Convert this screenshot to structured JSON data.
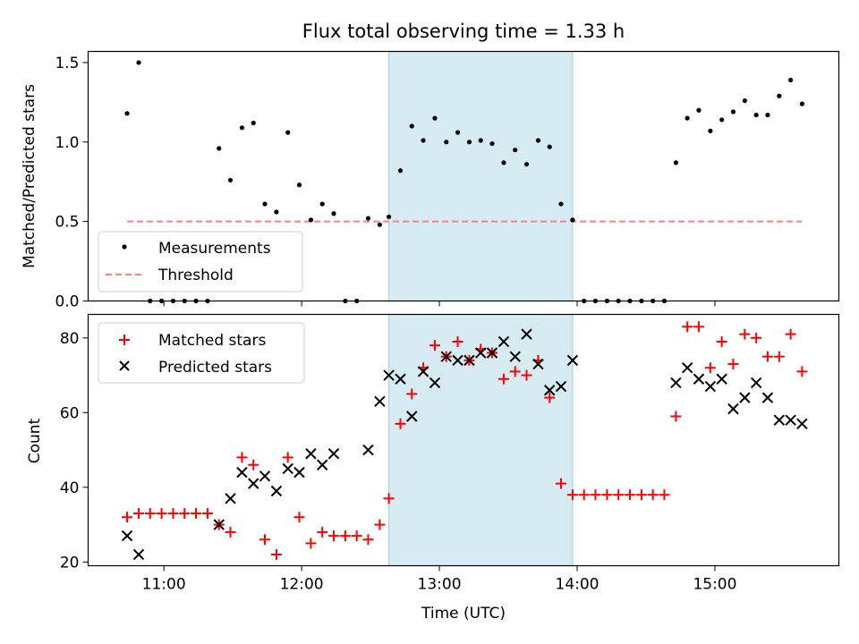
{
  "chart_data": [
    {
      "type": "scatter",
      "title": "Flux total observing time = 1.33 h",
      "xlabel": "",
      "ylabel": "Matched/Predicted stars",
      "xlim": [
        10.45,
        15.9
      ],
      "ylim": [
        0.0,
        1.57
      ],
      "yticks": [
        0.0,
        0.5,
        1.0,
        1.5
      ],
      "ytick_labels": [
        "0.0",
        "0.5",
        "1.0",
        "1.5"
      ],
      "shaded_span": {
        "x": [
          12.633,
          13.967
        ],
        "color": "#add8e6"
      },
      "legend": {
        "position": "lower-left",
        "entries": [
          "Measurements",
          "Threshold"
        ]
      },
      "series": [
        {
          "name": "Measurements",
          "marker": "dot",
          "color": "#000000",
          "points": [
            [
              10.733,
              1.18
            ],
            [
              10.817,
              1.5
            ],
            [
              10.9,
              0.0
            ],
            [
              10.983,
              0.0
            ],
            [
              11.067,
              0.0
            ],
            [
              11.15,
              0.0
            ],
            [
              11.233,
              0.0
            ],
            [
              11.317,
              0.0
            ],
            [
              11.4,
              0.96
            ],
            [
              11.483,
              0.76
            ],
            [
              11.567,
              1.09
            ],
            [
              11.65,
              1.12
            ],
            [
              11.733,
              0.61
            ],
            [
              11.817,
              0.56
            ],
            [
              11.9,
              1.06
            ],
            [
              11.983,
              0.73
            ],
            [
              12.067,
              0.51
            ],
            [
              12.15,
              0.61
            ],
            [
              12.233,
              0.55
            ],
            [
              12.317,
              0.0
            ],
            [
              12.4,
              0.0
            ],
            [
              12.483,
              0.52
            ],
            [
              12.567,
              0.48
            ],
            [
              12.633,
              0.53
            ],
            [
              12.717,
              0.82
            ],
            [
              12.8,
              1.1
            ],
            [
              12.883,
              1.01
            ],
            [
              12.967,
              1.15
            ],
            [
              13.05,
              1.0
            ],
            [
              13.133,
              1.06
            ],
            [
              13.217,
              1.0
            ],
            [
              13.3,
              1.01
            ],
            [
              13.383,
              0.99
            ],
            [
              13.467,
              0.87
            ],
            [
              13.55,
              0.95
            ],
            [
              13.633,
              0.86
            ],
            [
              13.717,
              1.01
            ],
            [
              13.8,
              0.97
            ],
            [
              13.883,
              0.61
            ],
            [
              13.967,
              0.51
            ],
            [
              14.05,
              0.0
            ],
            [
              14.133,
              0.0
            ],
            [
              14.217,
              0.0
            ],
            [
              14.3,
              0.0
            ],
            [
              14.383,
              0.0
            ],
            [
              14.467,
              0.0
            ],
            [
              14.55,
              0.0
            ],
            [
              14.633,
              0.0
            ],
            [
              14.717,
              0.87
            ],
            [
              14.8,
              1.15
            ],
            [
              14.883,
              1.2
            ],
            [
              14.967,
              1.07
            ],
            [
              15.05,
              1.14
            ],
            [
              15.133,
              1.19
            ],
            [
              15.217,
              1.26
            ],
            [
              15.3,
              1.17
            ],
            [
              15.383,
              1.17
            ],
            [
              15.467,
              1.29
            ],
            [
              15.55,
              1.39
            ],
            [
              15.633,
              1.24
            ]
          ]
        },
        {
          "name": "Threshold",
          "marker": "dashed-line",
          "color": "#ff7f7f",
          "points": [
            [
              10.733,
              0.5
            ],
            [
              15.633,
              0.5
            ]
          ]
        }
      ]
    },
    {
      "type": "scatter",
      "title": "",
      "xlabel": "Time (UTC)",
      "ylabel": "Count",
      "xlim": [
        10.45,
        15.9
      ],
      "ylim": [
        19.0,
        86.3
      ],
      "yticks": [
        20,
        40,
        60,
        80
      ],
      "ytick_labels": [
        "20",
        "40",
        "60",
        "80"
      ],
      "xticks": [
        11,
        12,
        13,
        14,
        15
      ],
      "xtick_labels": [
        "11:00",
        "12:00",
        "13:00",
        "14:00",
        "15:00"
      ],
      "shaded_span": {
        "x": [
          12.633,
          13.967
        ],
        "color": "#add8e6"
      },
      "legend": {
        "position": "top-left",
        "entries": [
          "Matched stars",
          "Predicted stars"
        ]
      },
      "series": [
        {
          "name": "Matched stars",
          "marker": "plus",
          "color": "#ff0000",
          "points": [
            [
              10.733,
              32
            ],
            [
              10.817,
              33
            ],
            [
              10.9,
              33
            ],
            [
              10.983,
              33
            ],
            [
              11.067,
              33
            ],
            [
              11.15,
              33
            ],
            [
              11.233,
              33
            ],
            [
              11.317,
              33
            ],
            [
              11.4,
              30
            ],
            [
              11.483,
              28
            ],
            [
              11.567,
              48
            ],
            [
              11.65,
              46
            ],
            [
              11.733,
              26
            ],
            [
              11.817,
              22
            ],
            [
              11.9,
              48
            ],
            [
              11.983,
              32
            ],
            [
              12.067,
              25
            ],
            [
              12.15,
              28
            ],
            [
              12.233,
              27
            ],
            [
              12.317,
              27
            ],
            [
              12.4,
              27
            ],
            [
              12.483,
              26
            ],
            [
              12.567,
              30
            ],
            [
              12.633,
              37
            ],
            [
              12.717,
              57
            ],
            [
              12.8,
              65
            ],
            [
              12.883,
              72
            ],
            [
              12.967,
              78
            ],
            [
              13.05,
              75
            ],
            [
              13.133,
              79
            ],
            [
              13.217,
              74
            ],
            [
              13.3,
              77
            ],
            [
              13.383,
              76
            ],
            [
              13.467,
              69
            ],
            [
              13.55,
              71
            ],
            [
              13.633,
              70
            ],
            [
              13.717,
              74
            ],
            [
              13.8,
              64
            ],
            [
              13.883,
              41
            ],
            [
              13.967,
              38
            ],
            [
              14.05,
              38
            ],
            [
              14.133,
              38
            ],
            [
              14.217,
              38
            ],
            [
              14.3,
              38
            ],
            [
              14.383,
              38
            ],
            [
              14.467,
              38
            ],
            [
              14.55,
              38
            ],
            [
              14.633,
              38
            ],
            [
              14.717,
              59
            ],
            [
              14.8,
              83
            ],
            [
              14.883,
              83
            ],
            [
              14.967,
              72
            ],
            [
              15.05,
              79
            ],
            [
              15.133,
              73
            ],
            [
              15.217,
              81
            ],
            [
              15.3,
              80
            ],
            [
              15.383,
              75
            ],
            [
              15.467,
              75
            ],
            [
              15.55,
              81
            ],
            [
              15.633,
              71
            ]
          ]
        },
        {
          "name": "Predicted stars",
          "marker": "x",
          "color": "#000000",
          "points": [
            [
              10.733,
              27
            ],
            [
              10.817,
              22
            ],
            [
              11.4,
              30
            ],
            [
              11.483,
              37
            ],
            [
              11.567,
              44
            ],
            [
              11.65,
              41
            ],
            [
              11.733,
              43
            ],
            [
              11.817,
              39
            ],
            [
              11.9,
              45
            ],
            [
              11.983,
              44
            ],
            [
              12.067,
              49
            ],
            [
              12.15,
              46
            ],
            [
              12.233,
              49
            ],
            [
              12.483,
              50
            ],
            [
              12.567,
              63
            ],
            [
              12.633,
              70
            ],
            [
              12.717,
              69
            ],
            [
              12.8,
              59
            ],
            [
              12.883,
              71
            ],
            [
              12.967,
              68
            ],
            [
              13.05,
              75
            ],
            [
              13.133,
              74
            ],
            [
              13.217,
              74
            ],
            [
              13.3,
              76
            ],
            [
              13.383,
              76
            ],
            [
              13.467,
              79
            ],
            [
              13.55,
              75
            ],
            [
              13.633,
              81
            ],
            [
              13.717,
              73
            ],
            [
              13.8,
              66
            ],
            [
              13.883,
              67
            ],
            [
              13.967,
              74
            ],
            [
              14.717,
              68
            ],
            [
              14.8,
              72
            ],
            [
              14.883,
              69
            ],
            [
              14.967,
              67
            ],
            [
              15.05,
              69
            ],
            [
              15.133,
              61
            ],
            [
              15.217,
              64
            ],
            [
              15.3,
              68
            ],
            [
              15.383,
              64
            ],
            [
              15.467,
              58
            ],
            [
              15.55,
              58
            ],
            [
              15.633,
              57
            ]
          ]
        }
      ]
    }
  ]
}
